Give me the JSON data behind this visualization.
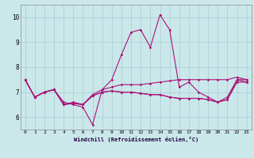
{
  "title": "",
  "xlabel": "Windchill (Refroidissement éolien,°C)",
  "background_color": "#cae8ea",
  "grid_color": "#b0d0d8",
  "line_color": "#aa1177",
  "x_ticks": [
    0,
    1,
    2,
    3,
    4,
    5,
    6,
    7,
    8,
    9,
    10,
    11,
    12,
    13,
    14,
    15,
    16,
    17,
    18,
    19,
    20,
    21,
    22,
    23
  ],
  "ylim": [
    5.5,
    10.5
  ],
  "yticks": [
    6,
    7,
    8,
    9,
    10
  ],
  "lines": [
    [
      7.5,
      6.8,
      7.0,
      7.1,
      6.6,
      6.5,
      6.4,
      5.7,
      7.1,
      7.5,
      8.5,
      9.4,
      9.5,
      8.8,
      10.1,
      9.5,
      7.2,
      7.4,
      7.0,
      6.8,
      6.6,
      6.8,
      7.5,
      7.5
    ],
    [
      7.5,
      6.8,
      7.0,
      7.1,
      6.5,
      6.6,
      6.5,
      6.9,
      7.1,
      7.2,
      7.3,
      7.3,
      7.3,
      7.35,
      7.4,
      7.45,
      7.5,
      7.5,
      7.5,
      7.5,
      7.5,
      7.5,
      7.6,
      7.5
    ],
    [
      7.5,
      6.8,
      7.0,
      7.1,
      6.5,
      6.55,
      6.5,
      6.85,
      7.0,
      7.05,
      7.0,
      7.0,
      6.95,
      6.9,
      6.9,
      6.8,
      6.75,
      6.75,
      6.75,
      6.7,
      6.6,
      6.7,
      7.5,
      7.4
    ],
    [
      7.5,
      6.8,
      7.0,
      7.1,
      6.5,
      6.55,
      6.5,
      6.85,
      7.0,
      7.05,
      7.0,
      7.0,
      6.95,
      6.9,
      6.9,
      6.8,
      6.75,
      6.75,
      6.75,
      6.7,
      6.6,
      6.7,
      7.4,
      7.4
    ]
  ]
}
